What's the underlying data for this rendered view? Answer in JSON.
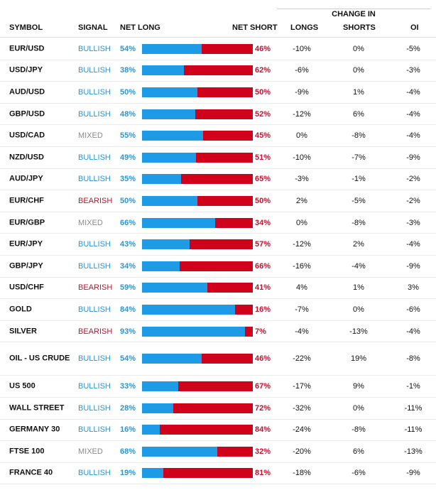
{
  "header": {
    "group_label": "CHANGE IN",
    "columns": {
      "symbol": "SYMBOL",
      "signal": "SIGNAL",
      "net_long": "NET LONG",
      "net_short": "NET SHORT",
      "longs": "LONGS",
      "shorts": "SHORTS",
      "oi": "OI"
    }
  },
  "colors": {
    "long": "#1e9be6",
    "short": "#d0021b",
    "bullish": "#2b95d6",
    "bearish": "#c8102e",
    "mixed": "#8a8a8a"
  },
  "rows": [
    {
      "symbol": "EUR/USD",
      "signal": "BULLISH",
      "net_long": "54%",
      "net_short": "46%",
      "long_fraction": 0.54,
      "longs": "-10%",
      "shorts": "0%",
      "oi": "-5%"
    },
    {
      "symbol": "USD/JPY",
      "signal": "BULLISH",
      "net_long": "38%",
      "net_short": "62%",
      "long_fraction": 0.38,
      "longs": "-6%",
      "shorts": "0%",
      "oi": "-3%"
    },
    {
      "symbol": "AUD/USD",
      "signal": "BULLISH",
      "net_long": "50%",
      "net_short": "50%",
      "long_fraction": 0.5,
      "longs": "-9%",
      "shorts": "1%",
      "oi": "-4%"
    },
    {
      "symbol": "GBP/USD",
      "signal": "BULLISH",
      "net_long": "48%",
      "net_short": "52%",
      "long_fraction": 0.48,
      "longs": "-12%",
      "shorts": "6%",
      "oi": "-4%"
    },
    {
      "symbol": "USD/CAD",
      "signal": "MIXED",
      "net_long": "55%",
      "net_short": "45%",
      "long_fraction": 0.55,
      "longs": "0%",
      "shorts": "-8%",
      "oi": "-4%"
    },
    {
      "symbol": "NZD/USD",
      "signal": "BULLISH",
      "net_long": "49%",
      "net_short": "51%",
      "long_fraction": 0.49,
      "longs": "-10%",
      "shorts": "-7%",
      "oi": "-9%"
    },
    {
      "symbol": "AUD/JPY",
      "signal": "BULLISH",
      "net_long": "35%",
      "net_short": "65%",
      "long_fraction": 0.35,
      "longs": "-3%",
      "shorts": "-1%",
      "oi": "-2%"
    },
    {
      "symbol": "EUR/CHF",
      "signal": "BEARISH",
      "net_long": "50%",
      "net_short": "50%",
      "long_fraction": 0.5,
      "longs": "2%",
      "shorts": "-5%",
      "oi": "-2%"
    },
    {
      "symbol": "EUR/GBP",
      "signal": "MIXED",
      "net_long": "66%",
      "net_short": "34%",
      "long_fraction": 0.66,
      "longs": "0%",
      "shorts": "-8%",
      "oi": "-3%"
    },
    {
      "symbol": "EUR/JPY",
      "signal": "BULLISH",
      "net_long": "43%",
      "net_short": "57%",
      "long_fraction": 0.43,
      "longs": "-12%",
      "shorts": "2%",
      "oi": "-4%"
    },
    {
      "symbol": "GBP/JPY",
      "signal": "BULLISH",
      "net_long": "34%",
      "net_short": "66%",
      "long_fraction": 0.34,
      "longs": "-16%",
      "shorts": "-4%",
      "oi": "-9%"
    },
    {
      "symbol": "USD/CHF",
      "signal": "BEARISH",
      "net_long": "59%",
      "net_short": "41%",
      "long_fraction": 0.59,
      "longs": "4%",
      "shorts": "1%",
      "oi": "3%"
    },
    {
      "symbol": "GOLD",
      "signal": "BULLISH",
      "net_long": "84%",
      "net_short": "16%",
      "long_fraction": 0.84,
      "longs": "-7%",
      "shorts": "0%",
      "oi": "-6%"
    },
    {
      "symbol": "SILVER",
      "signal": "BEARISH",
      "net_long": "93%",
      "net_short": "7%",
      "long_fraction": 0.93,
      "longs": "-4%",
      "shorts": "-13%",
      "oi": "-4%"
    },
    {
      "symbol": "OIL - US CRUDE",
      "signal": "BULLISH",
      "net_long": "54%",
      "net_short": "46%",
      "long_fraction": 0.54,
      "longs": "-22%",
      "shorts": "19%",
      "oi": "-8%"
    },
    {
      "symbol": "US 500",
      "signal": "BULLISH",
      "net_long": "33%",
      "net_short": "67%",
      "long_fraction": 0.33,
      "longs": "-17%",
      "shorts": "9%",
      "oi": "-1%"
    },
    {
      "symbol": "WALL STREET",
      "signal": "BULLISH",
      "net_long": "28%",
      "net_short": "72%",
      "long_fraction": 0.28,
      "longs": "-32%",
      "shorts": "0%",
      "oi": "-11%"
    },
    {
      "symbol": "GERMANY 30",
      "signal": "BULLISH",
      "net_long": "16%",
      "net_short": "84%",
      "long_fraction": 0.16,
      "longs": "-24%",
      "shorts": "-8%",
      "oi": "-11%"
    },
    {
      "symbol": "FTSE 100",
      "signal": "MIXED",
      "net_long": "68%",
      "net_short": "32%",
      "long_fraction": 0.68,
      "longs": "-20%",
      "shorts": "6%",
      "oi": "-13%"
    },
    {
      "symbol": "FRANCE 40",
      "signal": "BULLISH",
      "net_long": "19%",
      "net_short": "81%",
      "long_fraction": 0.19,
      "longs": "-18%",
      "shorts": "-6%",
      "oi": "-9%"
    }
  ]
}
